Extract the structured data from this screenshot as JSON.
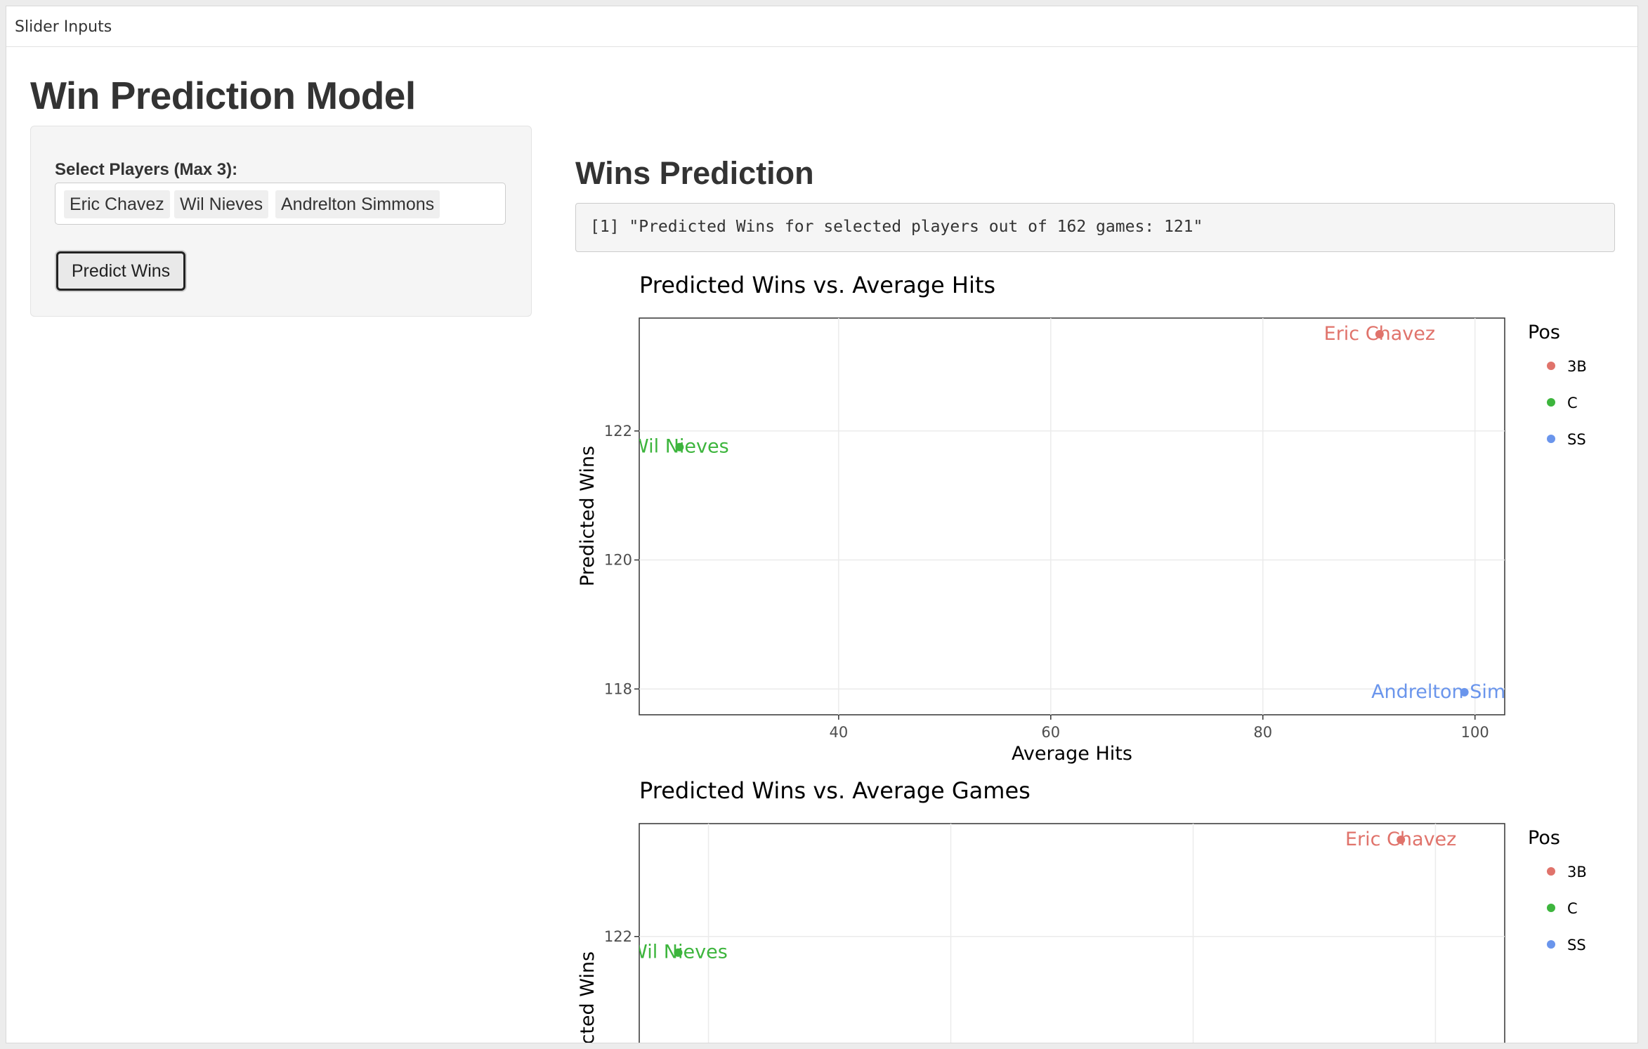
{
  "navbar": {
    "title": "Slider Inputs"
  },
  "page": {
    "title": "Win Prediction Model"
  },
  "sidebar": {
    "select_label": "Select Players (Max 3):",
    "selected_players": [
      "Eric Chavez",
      "Wil Nieves",
      "Andrelton Simmons"
    ],
    "predict_button": "Predict Wins"
  },
  "main": {
    "title": "Wins Prediction",
    "output": "[1] \"Predicted Wins for selected players out of 162 games: 121\""
  },
  "colors": {
    "3B": "#e0736b",
    "C": "#3db53d",
    "SS": "#6a95ec"
  },
  "chart_data": [
    {
      "type": "scatter",
      "title": "Predicted Wins vs. Average Hits",
      "xlabel": "Average Hits",
      "ylabel": "Predicted Wins",
      "xlim": [
        21.2,
        102.8
      ],
      "ylim": [
        117.6,
        123.75
      ],
      "x_ticks": [
        40,
        60,
        80,
        100
      ],
      "y_ticks": [
        118,
        120,
        122
      ],
      "grid": true,
      "legend": {
        "title": "Pos",
        "entries": [
          "3B",
          "C",
          "SS"
        ],
        "position": "right"
      },
      "points": [
        {
          "label": "Eric Chavez",
          "pos": "3B",
          "x": 91,
          "y": 123.5
        },
        {
          "label": "Wil Nieves",
          "pos": "C",
          "x": 25,
          "y": 121.75
        },
        {
          "label": "Andrelton Simmons",
          "pos": "SS",
          "x": 99,
          "y": 117.95
        }
      ]
    },
    {
      "type": "scatter",
      "title": "Predicted Wins vs. Average Games",
      "xlabel": "",
      "ylabel": "Predicted Wins",
      "xlim": [
        0,
        100
      ],
      "ylim": [
        117.6,
        123.75
      ],
      "x_ticks": [],
      "y_ticks": [
        122
      ],
      "grid": true,
      "legend": {
        "title": "Pos",
        "entries": [
          "3B",
          "C",
          "SS"
        ],
        "position": "right"
      },
      "points": [
        {
          "label": "Eric Chavez",
          "pos": "3B",
          "x": 88,
          "y": 123.5
        },
        {
          "label": "Wil Nieves",
          "pos": "C",
          "x": 4.5,
          "y": 121.75
        }
      ]
    }
  ]
}
